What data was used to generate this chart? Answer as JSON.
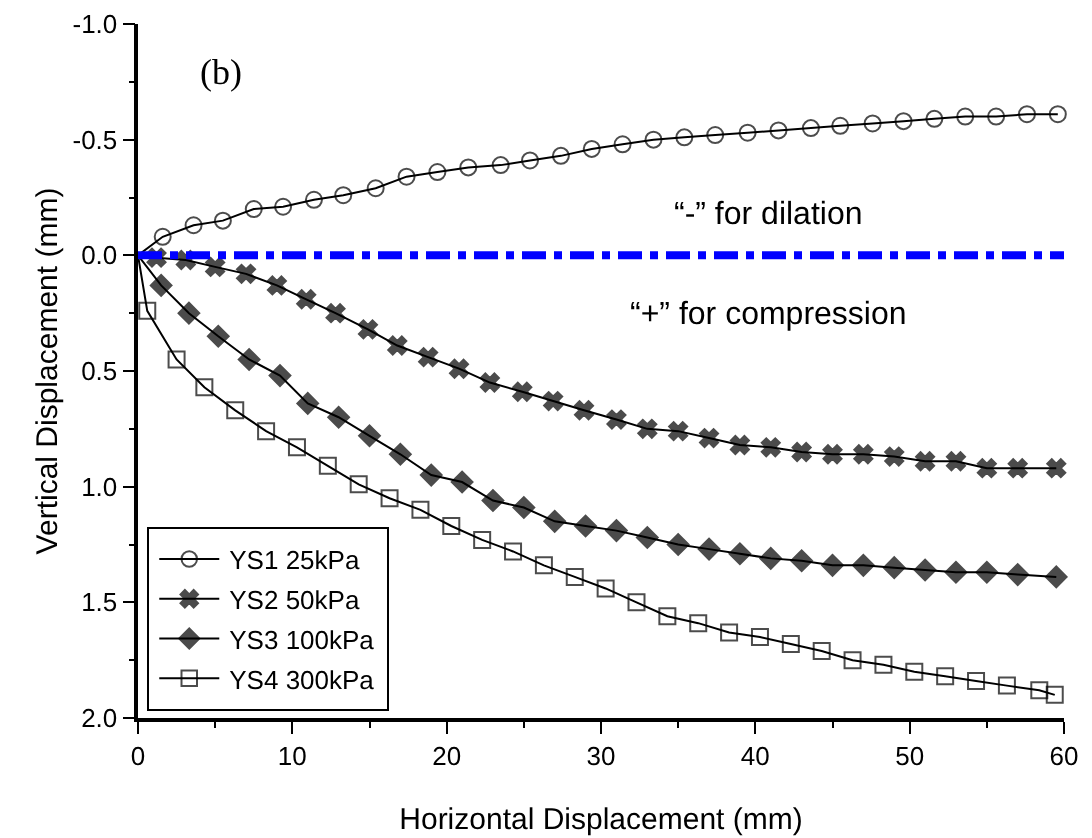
{
  "chart_data": {
    "type": "line",
    "xlabel": "Horizontal Displacement (mm)",
    "ylabel": "Vertical Displacement (mm)",
    "annotations": [
      "(b)",
      "“-” for dilation",
      "“+” for compression"
    ],
    "xlim": [
      0,
      60
    ],
    "xticks": [
      0,
      10,
      20,
      30,
      40,
      50,
      60
    ],
    "ylim": [
      2.0,
      -1.0
    ],
    "yticks": [
      {
        "value": -1.0,
        "label": "-1.0"
      },
      {
        "value": -0.5,
        "label": "-0.5"
      },
      {
        "value": 0,
        "label": "0.0"
      },
      {
        "value": 0.5,
        "label": "0.5"
      },
      {
        "value": 1.0,
        "label": "1.0"
      },
      {
        "value": 1.5,
        "label": "1.5"
      },
      {
        "value": 2.0,
        "label": "2.0"
      }
    ],
    "grid": false,
    "legend": "bottom left",
    "line_style": "solid",
    "ref_lines": [
      {
        "axis": "y",
        "value": 0,
        "color": "#0000ff",
        "line_style": "dashdot"
      }
    ],
    "series": [
      {
        "name": "YS1 25kPa",
        "color": "#000000",
        "marker": "circle",
        "x": [
          0,
          1.6,
          3.6,
          5.5,
          7.5,
          9.4,
          11.4,
          13.3,
          15.4,
          17.4,
          19.4,
          21.4,
          23.5,
          25.4,
          27.4,
          29.4,
          31.4,
          33.4,
          35.4,
          37.4,
          39.5,
          41.5,
          43.6,
          45.5,
          47.6,
          49.6,
          51.6,
          53.6,
          55.6,
          57.6,
          59.6
        ],
        "values": [
          0,
          -0.08,
          -0.13,
          -0.15,
          -0.2,
          -0.21,
          -0.24,
          -0.26,
          -0.29,
          -0.34,
          -0.36,
          -0.38,
          -0.39,
          -0.41,
          -0.43,
          -0.46,
          -0.48,
          -0.5,
          -0.51,
          -0.52,
          -0.53,
          -0.54,
          -0.55,
          -0.56,
          -0.57,
          -0.58,
          -0.59,
          -0.6,
          -0.6,
          -0.61,
          -0.61
        ]
      },
      {
        "name": "YS2 50kPa",
        "color": "#000000",
        "marker": "cross",
        "x": [
          0,
          1.2,
          3.1,
          5.0,
          7.0,
          9.0,
          10.9,
          12.8,
          14.9,
          16.8,
          18.8,
          20.8,
          22.8,
          24.9,
          26.9,
          28.9,
          31,
          33,
          35,
          37,
          39,
          41,
          43,
          45,
          47,
          49,
          51,
          53,
          55,
          57,
          59.5
        ],
        "values": [
          0,
          0.01,
          0.02,
          0.05,
          0.08,
          0.13,
          0.19,
          0.25,
          0.32,
          0.39,
          0.44,
          0.49,
          0.55,
          0.59,
          0.63,
          0.67,
          0.71,
          0.75,
          0.76,
          0.79,
          0.82,
          0.83,
          0.85,
          0.86,
          0.86,
          0.87,
          0.89,
          0.89,
          0.92,
          0.92,
          0.92
        ]
      },
      {
        "name": "YS3 100kPa",
        "color": "#000000",
        "marker": "diamond",
        "x": [
          0,
          1.5,
          3.3,
          5.2,
          7.2,
          9.2,
          11,
          13,
          15,
          17,
          19,
          21,
          23,
          25,
          27,
          29,
          31,
          33,
          35,
          37,
          39,
          41,
          43,
          45,
          47,
          49,
          51,
          53,
          55,
          57,
          59.5
        ],
        "values": [
          0,
          0.13,
          0.25,
          0.35,
          0.45,
          0.52,
          0.64,
          0.7,
          0.78,
          0.86,
          0.95,
          0.98,
          1.06,
          1.09,
          1.15,
          1.17,
          1.19,
          1.22,
          1.25,
          1.27,
          1.29,
          1.31,
          1.32,
          1.34,
          1.34,
          1.35,
          1.36,
          1.37,
          1.37,
          1.38,
          1.39
        ]
      },
      {
        "name": "YS4 300kPa",
        "color": "#000000",
        "marker": "square",
        "x": [
          0,
          0.6,
          2.5,
          4.3,
          6.3,
          8.3,
          10.3,
          12.3,
          14.3,
          16.3,
          18.3,
          20.3,
          22.3,
          24.3,
          26.3,
          28.3,
          30.3,
          32.3,
          34.3,
          36.3,
          38.3,
          40.3,
          42.3,
          44.3,
          46.3,
          48.3,
          50.3,
          52.3,
          54.3,
          56.3,
          58.4,
          59.4
        ],
        "values": [
          0,
          0.24,
          0.45,
          0.57,
          0.67,
          0.76,
          0.83,
          0.91,
          0.99,
          1.05,
          1.1,
          1.17,
          1.23,
          1.28,
          1.34,
          1.39,
          1.44,
          1.5,
          1.56,
          1.59,
          1.63,
          1.65,
          1.68,
          1.71,
          1.75,
          1.77,
          1.8,
          1.82,
          1.84,
          1.86,
          1.88,
          1.9
        ]
      }
    ]
  }
}
